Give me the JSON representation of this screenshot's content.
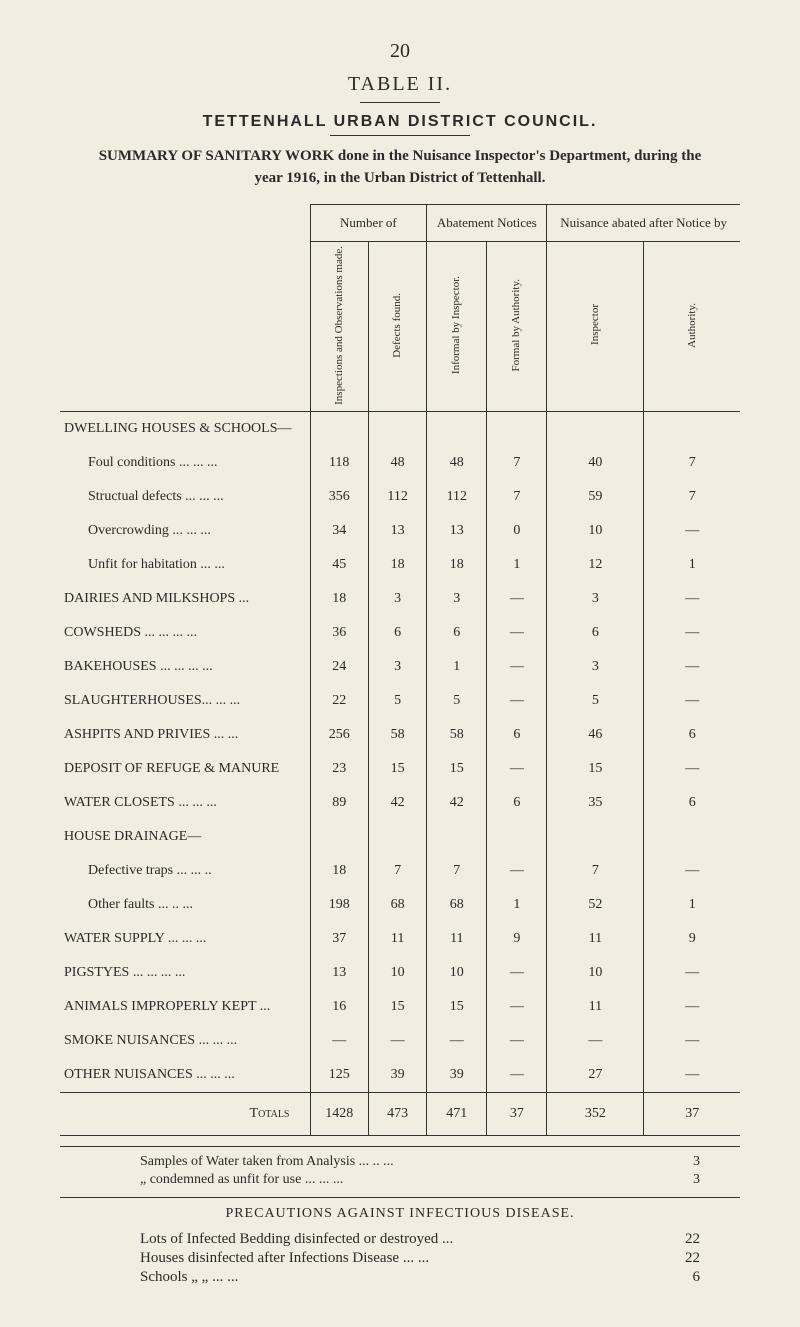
{
  "page_number": "20",
  "table_label": "TABLE II.",
  "council": "TETTENHALL URBAN DISTRICT COUNCIL.",
  "summary": "SUMMARY OF SANITARY WORK done in the Nuisance Inspector's Department, during the year 1916, in the Urban District of Tettenhall.",
  "group_headers": {
    "g1": "Number of",
    "g2": "Abatement Notices",
    "g3": "Nuisance abated after Notice by"
  },
  "sub_headers": {
    "c1": "Inspections and Observations made.",
    "c2": "Defects found.",
    "c3": "Informal by Inspector.",
    "c4": "Formal by Authority.",
    "c5": "Inspector",
    "c6": "Authority."
  },
  "rows": [
    {
      "label": "DWELLING HOUSES & SCHOOLS—",
      "indent": false,
      "header": true,
      "v": [
        "",
        "",
        "",
        "",
        "",
        ""
      ]
    },
    {
      "label": "Foul conditions   ...   ...   ...",
      "indent": true,
      "v": [
        "118",
        "48",
        "48",
        "7",
        "40",
        "7"
      ]
    },
    {
      "label": "Structual defects   ...   ...   ...",
      "indent": true,
      "v": [
        "356",
        "112",
        "112",
        "7",
        "59",
        "7"
      ]
    },
    {
      "label": "Overcrowding   ...   ...   ...",
      "indent": true,
      "v": [
        "34",
        "13",
        "13",
        "0",
        "10",
        "—"
      ]
    },
    {
      "label": "Unfit for habitation   ...   ...",
      "indent": true,
      "v": [
        "45",
        "18",
        "18",
        "1",
        "12",
        "1"
      ]
    },
    {
      "label": "DAIRIES AND MILKSHOPS   ...",
      "indent": false,
      "v": [
        "18",
        "3",
        "3",
        "—",
        "3",
        "—"
      ]
    },
    {
      "label": "COWSHEDS   ...   ...   ...   ...",
      "indent": false,
      "v": [
        "36",
        "6",
        "6",
        "—",
        "6",
        "—"
      ]
    },
    {
      "label": "BAKEHOUSES ...   ...   ...   ...",
      "indent": false,
      "v": [
        "24",
        "3",
        "1",
        "—",
        "3",
        "—"
      ]
    },
    {
      "label": "SLAUGHTERHOUSES...   ...   ...",
      "indent": false,
      "v": [
        "22",
        "5",
        "5",
        "—",
        "5",
        "—"
      ]
    },
    {
      "label": "ASHPITS AND PRIVIES   ...   ...",
      "indent": false,
      "v": [
        "256",
        "58",
        "58",
        "6",
        "46",
        "6"
      ]
    },
    {
      "label": "DEPOSIT OF REFUGE & MANURE",
      "indent": false,
      "v": [
        "23",
        "15",
        "15",
        "—",
        "15",
        "—"
      ]
    },
    {
      "label": "WATER CLOSETS   ...   ...   ...",
      "indent": false,
      "v": [
        "89",
        "42",
        "42",
        "6",
        "35",
        "6"
      ]
    },
    {
      "label": "HOUSE DRAINAGE—",
      "indent": false,
      "header": true,
      "v": [
        "",
        "",
        "",
        "",
        "",
        ""
      ]
    },
    {
      "label": "Defective traps   ...   ...   ..",
      "indent": true,
      "v": [
        "18",
        "7",
        "7",
        "—",
        "7",
        "—"
      ]
    },
    {
      "label": "Other faults   ...   ..   ...",
      "indent": true,
      "v": [
        "198",
        "68",
        "68",
        "1",
        "52",
        "1"
      ]
    },
    {
      "label": "WATER SUPPLY   ...   ...   ...",
      "indent": false,
      "v": [
        "37",
        "11",
        "11",
        "9",
        "11",
        "9"
      ]
    },
    {
      "label": "PIGSTYES   ...   ...   ...   ...",
      "indent": false,
      "v": [
        "13",
        "10",
        "10",
        "—",
        "10",
        "—"
      ]
    },
    {
      "label": "ANIMALS IMPROPERLY KEPT   ...",
      "indent": false,
      "v": [
        "16",
        "15",
        "15",
        "—",
        "11",
        "—"
      ]
    },
    {
      "label": "SMOKE NUISANCES ...   ...   ...",
      "indent": false,
      "v": [
        "—",
        "—",
        "—",
        "—",
        "—",
        "—"
      ]
    },
    {
      "label": "OTHER NUISANCES ...   ...   ...",
      "indent": false,
      "v": [
        "125",
        "39",
        "39",
        "—",
        "27",
        "—"
      ]
    }
  ],
  "totals": {
    "label": "Totals",
    "v": [
      "1428",
      "473",
      "471",
      "37",
      "352",
      "37"
    ]
  },
  "after": [
    {
      "label": "Samples of Water taken from Analysis   ...   ..   ...",
      "value": "3"
    },
    {
      "label": "„   condemned as unfit for use   ...   ...   ...",
      "value": "3"
    }
  ],
  "precautions_title": "PRECAUTIONS AGAINST INFECTIOUS DISEASE.",
  "precautions": [
    {
      "label": "Lots of Infected Bedding disinfected or destroyed   ...",
      "value": "22"
    },
    {
      "label": "Houses disinfected after Infections Disease   ...   ...",
      "value": "22"
    },
    {
      "label": "Schools   „   „   ...   ...",
      "value": "6"
    }
  ]
}
